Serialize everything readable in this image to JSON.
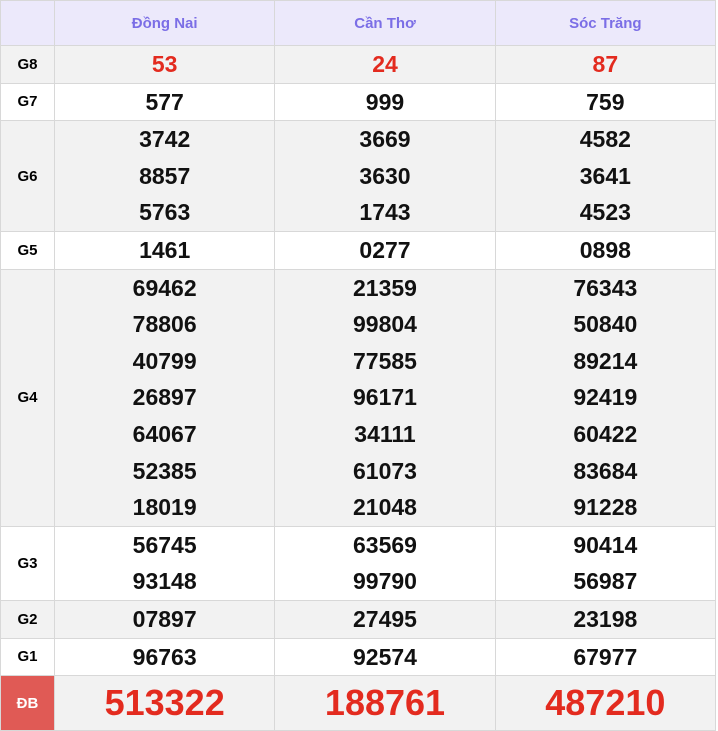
{
  "header": {
    "provinces": [
      "Đồng Nai",
      "Cần Thơ",
      "Sóc Trăng"
    ]
  },
  "prizes": [
    {
      "label": "G8",
      "values": [
        [
          "53"
        ],
        [
          "24"
        ],
        [
          "87"
        ]
      ],
      "style": "red"
    },
    {
      "label": "G7",
      "values": [
        [
          "577"
        ],
        [
          "999"
        ],
        [
          "759"
        ]
      ]
    },
    {
      "label": "G6",
      "values": [
        [
          "3742",
          "8857",
          "5763"
        ],
        [
          "3669",
          "3630",
          "1743"
        ],
        [
          "4582",
          "3641",
          "4523"
        ]
      ]
    },
    {
      "label": "G5",
      "values": [
        [
          "1461"
        ],
        [
          "0277"
        ],
        [
          "0898"
        ]
      ]
    },
    {
      "label": "G4",
      "values": [
        [
          "69462",
          "78806",
          "40799",
          "26897",
          "64067",
          "52385",
          "18019"
        ],
        [
          "21359",
          "99804",
          "77585",
          "96171",
          "34111",
          "61073",
          "21048"
        ],
        [
          "76343",
          "50840",
          "89214",
          "92419",
          "60422",
          "83684",
          "91228"
        ]
      ]
    },
    {
      "label": "G3",
      "values": [
        [
          "56745",
          "93148"
        ],
        [
          "63569",
          "99790"
        ],
        [
          "90414",
          "56987"
        ]
      ]
    },
    {
      "label": "G2",
      "values": [
        [
          "07897"
        ],
        [
          "27495"
        ],
        [
          "23198"
        ]
      ]
    },
    {
      "label": "G1",
      "values": [
        [
          "96763"
        ],
        [
          "92574"
        ],
        [
          "67977"
        ]
      ]
    },
    {
      "label": "ĐB",
      "values": [
        [
          "513322"
        ],
        [
          "188761"
        ],
        [
          "487210"
        ]
      ],
      "style": "big"
    }
  ],
  "colors": {
    "header_bg": "#ece9fb",
    "header_text": "#7b6ee6",
    "special": "#e32b1f",
    "db_label_bg": "#e05a55"
  }
}
